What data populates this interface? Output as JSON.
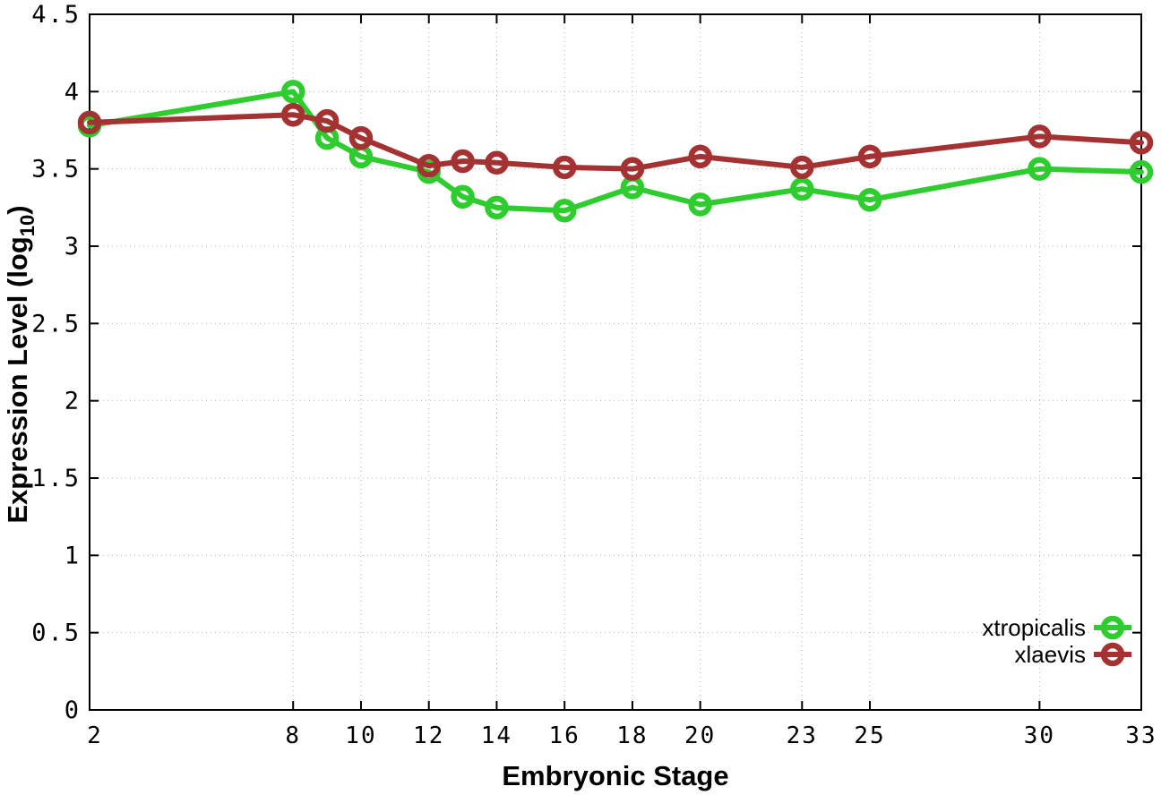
{
  "figure": {
    "background": "#ffffff",
    "border_color": "#000000",
    "grid_color": "#b3b3b3"
  },
  "chart_data": {
    "type": "line",
    "title": "",
    "xlabel": "Embryonic Stage",
    "ylabel": "Expression Level (log10)",
    "ylabel_parts": {
      "main": "Expression Level (log",
      "sub": "10",
      "close": ")"
    },
    "xlim": [
      2,
      33
    ],
    "ylim": [
      0,
      4.5
    ],
    "grid": true,
    "legend_position": "inside-right-bottom",
    "x_tick_labels": [
      "2",
      "8",
      "10",
      "12",
      "14",
      "16",
      "18",
      "20",
      "23",
      "25",
      "30",
      "33"
    ],
    "x_tick_values": [
      2,
      8,
      10,
      12,
      14,
      16,
      18,
      20,
      23,
      25,
      30,
      33
    ],
    "y_tick_labels": [
      "0",
      "0.5",
      "1",
      "1.5",
      "2",
      "2.5",
      "3",
      "3.5",
      "4",
      "4.5"
    ],
    "y_tick_values": [
      0,
      0.5,
      1,
      1.5,
      2,
      2.5,
      3,
      3.5,
      4,
      4.5
    ],
    "x": [
      2,
      8,
      9,
      10,
      12,
      13,
      14,
      16,
      18,
      20,
      23,
      25,
      30,
      33
    ],
    "series": [
      {
        "name": "xtropicalis",
        "color": "#2ecc2e",
        "marker": "open-circle",
        "values": [
          3.78,
          4.0,
          3.7,
          3.58,
          3.48,
          3.32,
          3.25,
          3.23,
          3.38,
          3.27,
          3.37,
          3.3,
          3.5,
          3.48
        ]
      },
      {
        "name": "xlaevis",
        "color": "#a53232",
        "marker": "open-circle",
        "values": [
          3.8,
          3.85,
          3.81,
          3.7,
          3.52,
          3.55,
          3.54,
          3.51,
          3.5,
          3.58,
          3.51,
          3.58,
          3.71,
          3.67
        ]
      }
    ]
  }
}
